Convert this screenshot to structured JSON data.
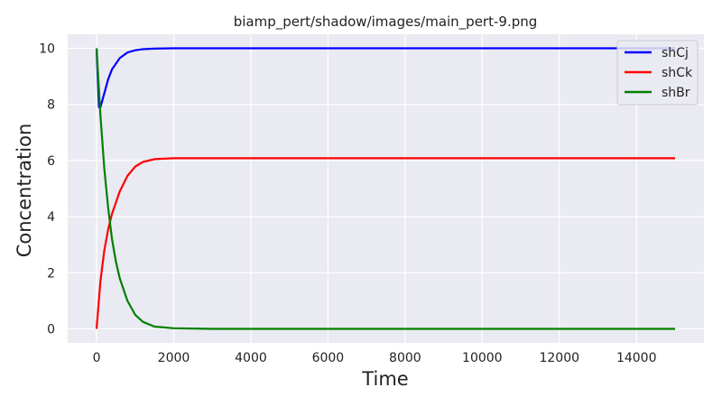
{
  "chart_data": {
    "type": "line",
    "title": "biamp_pert/shadow/images/main_pert-9.png",
    "xlabel": "Time",
    "ylabel": "Concentration",
    "xlim": [
      -750,
      15750
    ],
    "ylim": [
      -0.5,
      10.5
    ],
    "xticks": [
      0,
      2000,
      4000,
      6000,
      8000,
      10000,
      12000,
      14000
    ],
    "yticks": [
      0,
      2,
      4,
      6,
      8,
      10
    ],
    "grid": true,
    "legend_position": "top-right",
    "background": "#eaeaf2",
    "series": [
      {
        "name": "shCj",
        "color": "#0000ff",
        "x": [
          0,
          60,
          100,
          200,
          300,
          400,
          600,
          800,
          1000,
          1200,
          1500,
          2000,
          3000,
          5000,
          8000,
          12000,
          15000
        ],
        "y": [
          10,
          7.9,
          7.9,
          8.4,
          8.9,
          9.25,
          9.65,
          9.85,
          9.93,
          9.97,
          9.99,
          10,
          10,
          10,
          10,
          10,
          10
        ]
      },
      {
        "name": "shCk",
        "color": "#ff0000",
        "x": [
          0,
          100,
          200,
          300,
          400,
          600,
          800,
          1000,
          1200,
          1500,
          2000,
          3000,
          5000,
          8000,
          12000,
          15000
        ],
        "y": [
          0,
          1.7,
          2.8,
          3.55,
          4.1,
          4.9,
          5.45,
          5.78,
          5.95,
          6.05,
          6.08,
          6.08,
          6.08,
          6.08,
          6.08,
          6.08
        ]
      },
      {
        "name": "shBr",
        "color": "#008000",
        "x": [
          0,
          100,
          200,
          300,
          400,
          500,
          600,
          800,
          1000,
          1200,
          1500,
          2000,
          3000,
          5000,
          8000,
          12000,
          15000
        ],
        "y": [
          10,
          7.6,
          5.7,
          4.3,
          3.2,
          2.4,
          1.8,
          1.0,
          0.5,
          0.25,
          0.08,
          0.02,
          0,
          0,
          0,
          0,
          0
        ]
      }
    ]
  }
}
